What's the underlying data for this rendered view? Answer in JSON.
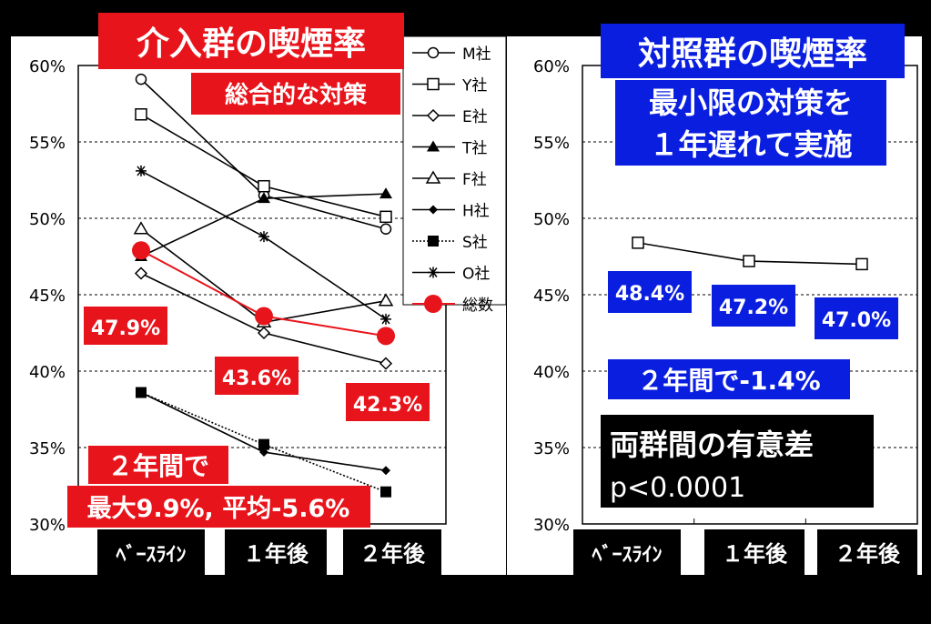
{
  "left_panel": {
    "title": "介入群の喫煙率",
    "subtitle": "総合的な対策",
    "ann_baseline": "47.9%",
    "ann_year1": "43.6%",
    "ann_year2": "42.3%",
    "summary_line1": "２年間で",
    "summary_line2": "最大9.9%, 平均-5.6%"
  },
  "right_panel": {
    "title": "対照群の喫煙率",
    "subtitle_line1": "最小限の対策を",
    "subtitle_line2": "１年遅れて実施",
    "ann_baseline": "48.4%",
    "ann_year1": "47.2%",
    "ann_year2": "47.0%",
    "change_note": "２年間で-1.4%",
    "sig_line1": "両群間の有意差",
    "sig_line2": "p<0.0001"
  },
  "chart_data": [
    {
      "type": "line",
      "title": "介入群の喫煙率",
      "categories": [
        "ﾍﾞｰｽﾗｲﾝ",
        "１年後",
        "２年後"
      ],
      "yticks": [
        "30%",
        "35%",
        "40%",
        "45%",
        "50%",
        "55%",
        "60%"
      ],
      "ylim": [
        30,
        60
      ],
      "grid": true,
      "legend_position": "top-right",
      "series": [
        {
          "name": "M社",
          "marker": "circle-open",
          "values": [
            59.1,
            51.5,
            49.3
          ]
        },
        {
          "name": "Y社",
          "marker": "square-open",
          "values": [
            56.8,
            52.1,
            50.1
          ]
        },
        {
          "name": "E社",
          "marker": "diamond-open",
          "values": [
            46.4,
            42.5,
            40.5
          ]
        },
        {
          "name": "T社",
          "marker": "triangle-filled",
          "values": [
            47.5,
            51.3,
            51.6
          ]
        },
        {
          "name": "F社",
          "marker": "triangle-open",
          "values": [
            49.3,
            43.2,
            44.6
          ]
        },
        {
          "name": "H社",
          "marker": "diamond-filled",
          "values": [
            38.6,
            34.7,
            33.5
          ]
        },
        {
          "name": "S社",
          "marker": "square-filled",
          "dashed": true,
          "values": [
            38.6,
            35.2,
            32.1
          ]
        },
        {
          "name": "O社",
          "marker": "star",
          "values": [
            53.1,
            48.8,
            43.4
          ]
        },
        {
          "name": "総数",
          "marker": "circle-red",
          "color": "#e8141b",
          "values": [
            47.9,
            43.6,
            42.3
          ]
        }
      ]
    },
    {
      "type": "line",
      "title": "対照群の喫煙率",
      "categories": [
        "ﾍﾞｰｽﾗｲﾝ",
        "１年後",
        "２年後"
      ],
      "yticks": [
        "30%",
        "35%",
        "40%",
        "45%",
        "50%",
        "55%",
        "60%"
      ],
      "ylim": [
        30,
        60
      ],
      "grid": true,
      "series": [
        {
          "name": "",
          "marker": "square-open",
          "values": [
            48.4,
            47.2,
            47.0
          ]
        }
      ]
    }
  ]
}
